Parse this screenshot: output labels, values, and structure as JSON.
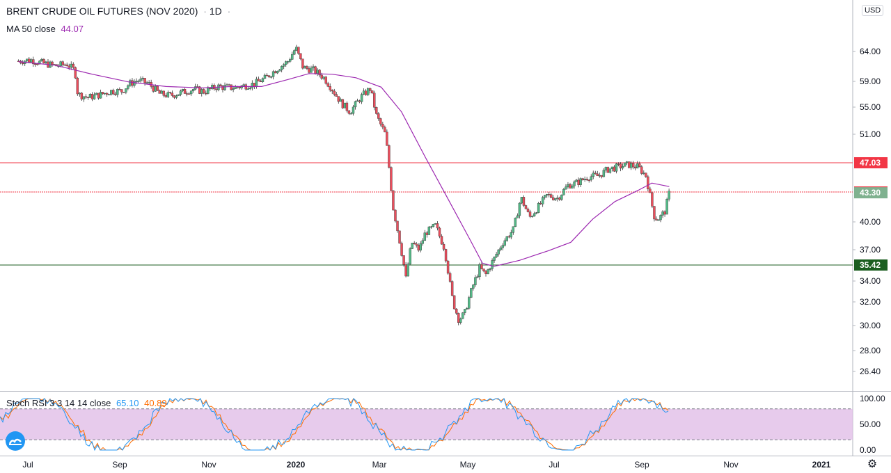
{
  "header": {
    "title": "BRENT CRUDE OIL FUTURES (NOV 2020)",
    "interval": "1D",
    "currency": "USD"
  },
  "ma_legend": {
    "label": "MA 50 close",
    "value": "44.07"
  },
  "stoch_legend": {
    "label": "Stoch RSI 3 3 14 14 close",
    "k_value": "65.10",
    "d_value": "40.89"
  },
  "colors": {
    "up": "#53b987",
    "down": "#eb4d5c",
    "ma": "#9c27b0",
    "resistance": "#f23645",
    "support": "#1b5e20",
    "stoch_k": "#2196f3",
    "stoch_d": "#ff6d00",
    "stoch_band": "#e1bee7",
    "price_tag": "#7fb18f"
  },
  "chart_data": {
    "type": "candlestick",
    "price_axis_ticks": [
      "64.00",
      "59.00",
      "55.00",
      "51.00",
      "47.03",
      "43.39",
      "43.30",
      "40.00",
      "37.00",
      "35.42",
      "34.00",
      "32.00",
      "30.00",
      "28.00",
      "26.40"
    ],
    "time_axis_ticks": [
      "Jul",
      "Sep",
      "Nov",
      "2020",
      "Mar",
      "May",
      "Jul",
      "Sep",
      "Nov",
      "2021"
    ],
    "horizontal_levels": [
      {
        "value": 47.03,
        "color": "resistance"
      },
      {
        "value": 43.39,
        "color": "resistance",
        "dotted": true
      },
      {
        "value": 35.42,
        "color": "support"
      }
    ],
    "last_price": 43.3,
    "ohlc_path": [
      [
        "Jun 25",
        62.4
      ],
      [
        "Jul 3",
        62.6
      ],
      [
        "Jul 12",
        62.0
      ],
      [
        "Jul 20",
        61.6
      ],
      [
        "Jul 28",
        61.9
      ],
      [
        "Aug 3",
        60.8
      ],
      [
        "Aug 5",
        57.0
      ],
      [
        "Aug 12",
        56.5
      ],
      [
        "Aug 20",
        56.9
      ],
      [
        "Aug 28",
        57.5
      ],
      [
        "Sep 5",
        57.5
      ],
      [
        "Sep 10",
        58.6
      ],
      [
        "Sep 16",
        59.2
      ],
      [
        "Sep 23",
        58.7
      ],
      [
        "Oct 1",
        57.0
      ],
      [
        "Oct 8",
        56.8
      ],
      [
        "Oct 16",
        57.3
      ],
      [
        "Oct 24",
        57.8
      ],
      [
        "Nov 1",
        57.4
      ],
      [
        "Nov 10",
        58.2
      ],
      [
        "Nov 20",
        58.0
      ],
      [
        "Nov 28",
        58.3
      ],
      [
        "Dec 5",
        58.6
      ],
      [
        "Dec 13",
        59.6
      ],
      [
        "Dec 20",
        61.0
      ],
      [
        "Dec 28",
        62.3
      ],
      [
        "Jan 3",
        64.6
      ],
      [
        "Jan 8",
        61.3
      ],
      [
        "Jan 15",
        60.9
      ],
      [
        "Jan 22",
        59.7
      ],
      [
        "Jan 28",
        57.8
      ],
      [
        "Feb 4",
        55.6
      ],
      [
        "Feb 10",
        54.3
      ],
      [
        "Feb 18",
        56.7
      ],
      [
        "Feb 24",
        57.9
      ],
      [
        "Feb 28",
        53.8
      ],
      [
        "Mar 4",
        50.9
      ],
      [
        "Mar 6",
        47.2
      ],
      [
        "Mar 9",
        41.8
      ],
      [
        "Mar 13",
        38.5
      ],
      [
        "Mar 18",
        34.2
      ],
      [
        "Mar 22",
        37.8
      ],
      [
        "Mar 27",
        37.0
      ],
      [
        "Apr 1",
        38.8
      ],
      [
        "Apr 8",
        39.6
      ],
      [
        "Apr 14",
        37.2
      ],
      [
        "Apr 20",
        32.0
      ],
      [
        "Apr 24",
        30.5
      ],
      [
        "Apr 28",
        31.0
      ],
      [
        "May 3",
        33.4
      ],
      [
        "May 8",
        35.2
      ],
      [
        "May 12",
        34.5
      ],
      [
        "May 18",
        36.1
      ],
      [
        "May 24",
        37.8
      ],
      [
        "Jun 1",
        39.2
      ],
      [
        "Jun 6",
        42.8
      ],
      [
        "Jun 12",
        40.5
      ],
      [
        "Jun 18",
        41.7
      ],
      [
        "Jun 24",
        43.0
      ],
      [
        "Jul 1",
        42.7
      ],
      [
        "Jul 8",
        44.2
      ],
      [
        "Jul 15",
        44.6
      ],
      [
        "Jul 22",
        45.3
      ],
      [
        "Jul 29",
        45.4
      ],
      [
        "Aug 5",
        46.2
      ],
      [
        "Aug 12",
        46.5
      ],
      [
        "Aug 19",
        46.8
      ],
      [
        "Aug 26",
        46.5
      ],
      [
        "Sep 1",
        45.4
      ],
      [
        "Sep 3",
        43.6
      ],
      [
        "Sep 7",
        40.4
      ],
      [
        "Sep 10",
        40.4
      ],
      [
        "Sep 14",
        41.2
      ],
      [
        "Sep 17",
        43.3
      ]
    ],
    "ma_50_path": [
      [
        "Jun 25",
        62.3
      ],
      [
        "Jul 20",
        61.7
      ],
      [
        "Aug 15",
        60.2
      ],
      [
        "Sep 10",
        58.9
      ],
      [
        "Oct 5",
        58.2
      ],
      [
        "Oct 30",
        58.0
      ],
      [
        "Nov 20",
        58.2
      ],
      [
        "Dec 10",
        58.2
      ],
      [
        "Dec 28",
        59.3
      ],
      [
        "Jan 12",
        60.3
      ],
      [
        "Jan 28",
        60.2
      ],
      [
        "Feb 14",
        59.6
      ],
      [
        "Mar 1",
        58.1
      ],
      [
        "Mar 15",
        54.3
      ],
      [
        "Apr 1",
        47.8
      ],
      [
        "Apr 15",
        43.1
      ],
      [
        "May 1",
        38.2
      ],
      [
        "May 10",
        35.6
      ],
      [
        "May 18",
        35.3
      ],
      [
        "Jun 5",
        35.9
      ],
      [
        "Jun 25",
        36.9
      ],
      [
        "Jul 10",
        37.8
      ],
      [
        "Jul 25",
        40.3
      ],
      [
        "Aug 10",
        42.3
      ],
      [
        "Aug 26",
        43.6
      ],
      [
        "Sep 5",
        44.5
      ],
      [
        "Sep 17",
        44.07
      ]
    ],
    "stoch_rsi": {
      "axis_ticks": [
        "100.00",
        "50.00",
        "0.00"
      ],
      "band": [
        20,
        80
      ]
    }
  }
}
